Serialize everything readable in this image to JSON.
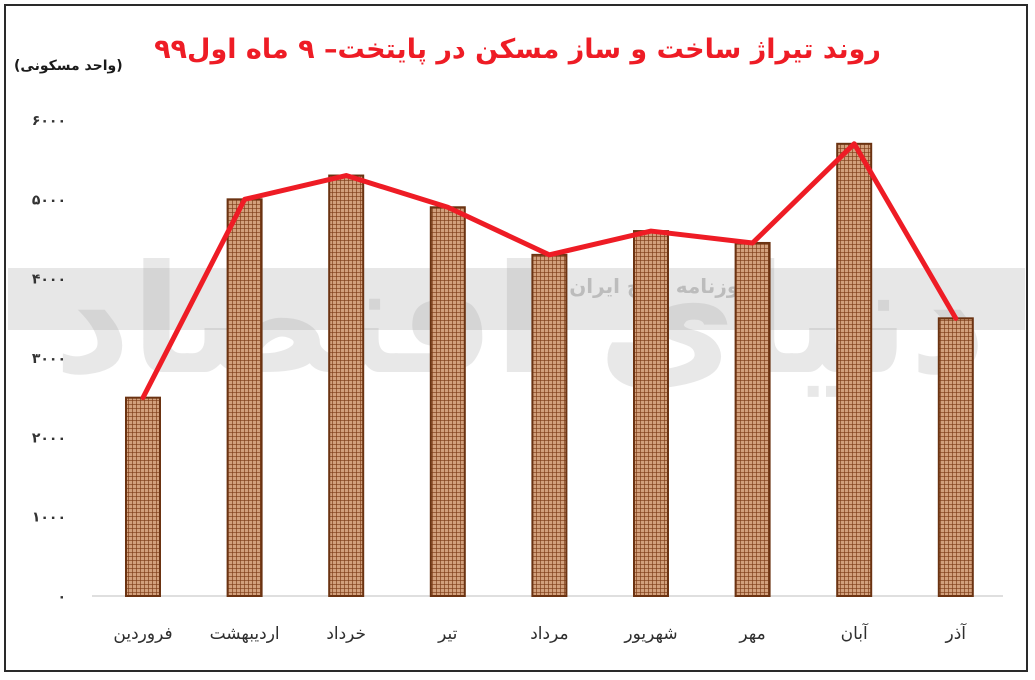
{
  "chart_data": {
    "type": "bar",
    "title": "روند تیراژ ساخت و ساز مسکن در پایتخت– ۹ ماه اول۹۹",
    "ylabel": "(واحد مسکونی)",
    "xlabel": "",
    "categories": [
      "فروردین",
      "اردیبهشت",
      "خرداد",
      "تیر",
      "مرداد",
      "شهریور",
      "مهر",
      "آبان",
      "آذر"
    ],
    "values": [
      2500,
      5000,
      5300,
      4900,
      4300,
      4600,
      4450,
      5700,
      3500
    ],
    "ylim": [
      0,
      6000
    ],
    "yticks": [
      {
        "value": 0,
        "label": "۰"
      },
      {
        "value": 1000,
        "label": "۱۰۰۰"
      },
      {
        "value": 2000,
        "label": "۲۰۰۰"
      },
      {
        "value": 3000,
        "label": "۳۰۰۰"
      },
      {
        "value": 4000,
        "label": "۴۰۰۰"
      },
      {
        "value": 5000,
        "label": "۵۰۰۰"
      },
      {
        "value": 6000,
        "label": "۶۰۰۰"
      }
    ],
    "line_overlay": true,
    "grid": false,
    "colors": {
      "bar_fill": "#d2a07c",
      "bar_grid": "#7b3a15",
      "bar_border": "#6b3312",
      "line": "#ee1c25",
      "title": "#ee1c25"
    }
  },
  "watermark": {
    "text": "دنیای اقتصاد",
    "subtitle": "روزنامه صبح ایران"
  }
}
